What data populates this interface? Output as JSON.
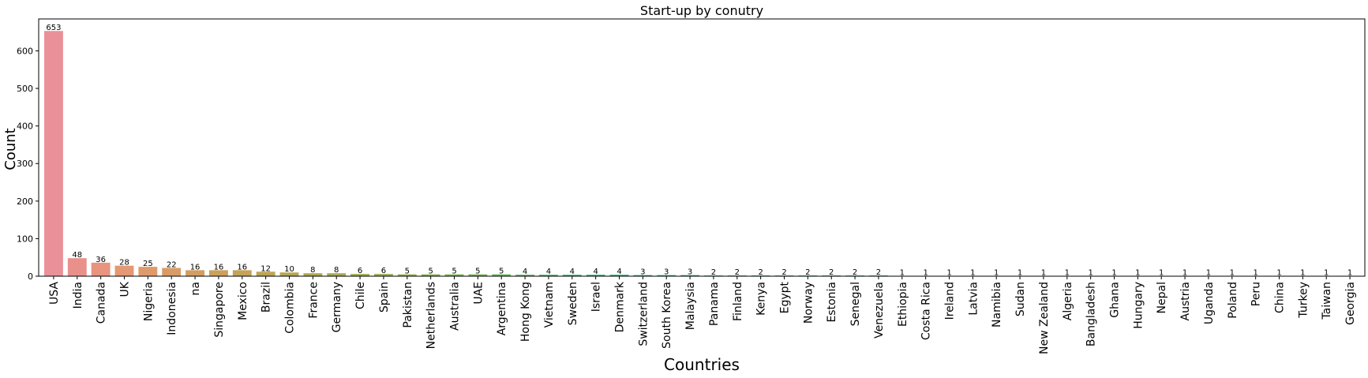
{
  "chart_data": {
    "type": "bar",
    "title": "Start-up by conutry",
    "xlabel": "Countries",
    "ylabel": "Count",
    "ylim": [
      0,
      685
    ],
    "yticks": [
      0,
      100,
      200,
      300,
      400,
      500,
      600
    ],
    "categories": [
      "USA",
      "India",
      "Canada",
      "UK",
      "Nigeria",
      "Indonesia",
      "na",
      "Singapore",
      "Mexico",
      "Brazil",
      "Colombia",
      "France",
      "Germany",
      "Chile",
      "Spain",
      "Pakistan",
      "Netherlands",
      "Australia",
      "UAE",
      "Argentina",
      "Hong Kong",
      "Vietnam",
      "Sweden",
      "Israel",
      "Denmark",
      "Switzerland",
      "South Korea",
      "Malaysia",
      "Panama",
      "Finland",
      "Kenya",
      "Egypt",
      "Norway",
      "Estonia",
      "Senegal",
      "Venezuela",
      "Ethiopia",
      "Costa Rica",
      "Ireland",
      "Latvia",
      "Namibia",
      "Sudan",
      "New Zealand",
      "Algeria",
      "Bangladesh",
      "Ghana",
      "Hungary",
      "Nepal",
      "Austria",
      "Uganda",
      "Poland",
      "Peru",
      "China",
      "Turkey",
      "Taiwan",
      "Georgia"
    ],
    "values": [
      653,
      48,
      36,
      28,
      25,
      22,
      16,
      16,
      16,
      12,
      10,
      8,
      8,
      6,
      6,
      5,
      5,
      5,
      5,
      5,
      4,
      4,
      4,
      4,
      4,
      3,
      3,
      3,
      2,
      2,
      2,
      2,
      2,
      2,
      2,
      2,
      1,
      1,
      1,
      1,
      1,
      1,
      1,
      1,
      1,
      1,
      1,
      1,
      1,
      1,
      1,
      1,
      1,
      1,
      1,
      1
    ],
    "colors": [
      "#ea9099",
      "#e9908a",
      "#e8947e",
      "#e49873",
      "#df9a6c",
      "#d99b66",
      "#d29d5f",
      "#cba05a",
      "#c5a257",
      "#bea454",
      "#b7a653",
      "#b0a852",
      "#a9aa51",
      "#a2ac51",
      "#9aae52",
      "#92b053",
      "#89b255",
      "#80b458",
      "#76b55c",
      "#6bb660",
      "#5fb765",
      "#53b86a",
      "#47b96f",
      "#3db975",
      "#35b97b",
      "#31b980",
      "#31b986",
      "#33b88b",
      "#35b890",
      "#37b795",
      "#39b69a",
      "#3ab59e",
      "#3cb4a3",
      "#3db3a8",
      "#3eb2ad",
      "#3fb1b2",
      "#40b0b7",
      "#41afbd",
      "#42adc2",
      "#43acc8",
      "#45aace",
      "#47a8d4",
      "#4aa6da",
      "#50a2e0",
      "#589ee5",
      "#629aea",
      "#6f95ee",
      "#7c90f0",
      "#898bf1",
      "#9687f0",
      "#a283ee",
      "#ae80ea",
      "#b97de5",
      "#c37be0",
      "#cd79d9",
      "#d678d1"
    ],
    "grid": false,
    "legend": "none"
  }
}
